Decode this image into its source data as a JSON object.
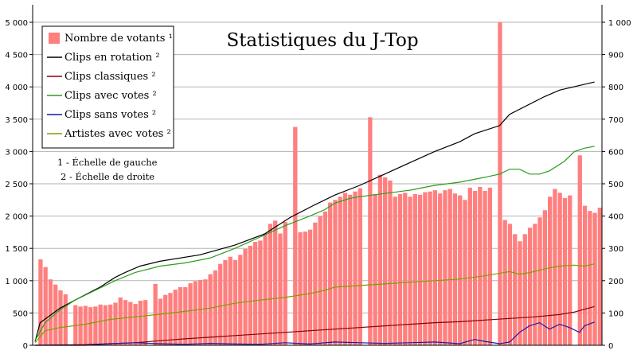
{
  "chart_data": {
    "type": "bar",
    "title": "Statistiques du J-Top",
    "y_left": {
      "min": 0,
      "max": 5000,
      "step": 500,
      "tick_labels": [
        "0",
        "500",
        "1 000",
        "1 500",
        "2 000",
        "2 500",
        "3 000",
        "3 500",
        "4 000",
        "4 500",
        "5 000"
      ]
    },
    "y_right": {
      "min": 0,
      "max": 1000,
      "step": 100,
      "tick_labels": [
        "0",
        "100",
        "200",
        "300",
        "400",
        "500",
        "600",
        "700",
        "800",
        "900",
        "1 000"
      ]
    },
    "grid": true,
    "legend_position": "top-left",
    "notes": [
      "1 - Échelle de gauche",
      "2 - Échelle de droite"
    ],
    "colors": {
      "bars": "#ff7f7f",
      "rotation": "#000000",
      "classiques": "#8b0000",
      "avec_votes": "#2a9d1a",
      "sans_votes": "#1a1aa0",
      "artistes": "#7aa000",
      "grid": "#b3b3b3"
    },
    "series": [
      {
        "key": "votants",
        "name": "Nombre de votants ¹",
        "axis": "left",
        "kind": "bar",
        "color": "#ff7f7f",
        "values": [
          0,
          1330,
          1210,
          1020,
          940,
          850,
          790,
          0,
          620,
          600,
          610,
          590,
          600,
          630,
          620,
          630,
          660,
          740,
          700,
          670,
          640,
          690,
          700,
          0,
          950,
          720,
          780,
          810,
          860,
          900,
          900,
          960,
          990,
          1010,
          1020,
          1100,
          1160,
          1260,
          1320,
          1370,
          1320,
          1400,
          1490,
          1540,
          1600,
          1620,
          1730,
          1880,
          1930,
          1730,
          1910,
          0,
          3380,
          1750,
          1760,
          1790,
          1900,
          2000,
          2070,
          2210,
          2250,
          2300,
          2360,
          2330,
          2380,
          2430,
          0,
          3530,
          2340,
          2640,
          2600,
          2550,
          2300,
          2340,
          2360,
          2300,
          2340,
          2330,
          2370,
          2380,
          2400,
          2350,
          2400,
          2420,
          2350,
          2320,
          2250,
          2440,
          2390,
          2450,
          2390,
          2440,
          0,
          5000,
          1940,
          1880,
          1720,
          1610,
          1720,
          1820,
          1880,
          1980,
          2090,
          2300,
          2420,
          2360,
          2280,
          2320,
          0,
          2940,
          2160,
          2080,
          2050,
          2130
        ]
      },
      {
        "key": "rotation",
        "name": "Clips en rotation ²",
        "axis": "right",
        "kind": "line",
        "color": "#000000",
        "points": [
          [
            0,
            12
          ],
          [
            1,
            70
          ],
          [
            5,
            115
          ],
          [
            8,
            140
          ],
          [
            13,
            180
          ],
          [
            16,
            210
          ],
          [
            18,
            225
          ],
          [
            21,
            245
          ],
          [
            25,
            260
          ],
          [
            33,
            280
          ],
          [
            40,
            310
          ],
          [
            46,
            345
          ],
          [
            51,
            395
          ],
          [
            56,
            435
          ],
          [
            60,
            465
          ],
          [
            65,
            495
          ],
          [
            70,
            530
          ],
          [
            75,
            565
          ],
          [
            80,
            600
          ],
          [
            85,
            630
          ],
          [
            88,
            655
          ],
          [
            93,
            680
          ],
          [
            95,
            715
          ],
          [
            102,
            770
          ],
          [
            105,
            790
          ],
          [
            112,
            815
          ]
        ]
      },
      {
        "key": "classiques",
        "name": "Clips classiques ²",
        "axis": "right",
        "kind": "line",
        "color": "#8b0000",
        "points": [
          [
            0,
            0
          ],
          [
            10,
            2
          ],
          [
            15,
            5
          ],
          [
            20,
            8
          ],
          [
            25,
            14
          ],
          [
            30,
            20
          ],
          [
            35,
            25
          ],
          [
            40,
            30
          ],
          [
            45,
            35
          ],
          [
            50,
            40
          ],
          [
            55,
            45
          ],
          [
            60,
            50
          ],
          [
            65,
            55
          ],
          [
            70,
            60
          ],
          [
            75,
            65
          ],
          [
            80,
            70
          ],
          [
            85,
            73
          ],
          [
            90,
            78
          ],
          [
            95,
            83
          ],
          [
            100,
            88
          ],
          [
            105,
            95
          ],
          [
            108,
            103
          ],
          [
            112,
            120
          ]
        ]
      },
      {
        "key": "avec_votes",
        "name": "Clips avec votes ²",
        "axis": "right",
        "kind": "line",
        "color": "#2a9d1a",
        "points": [
          [
            0,
            15
          ],
          [
            2,
            70
          ],
          [
            5,
            110
          ],
          [
            8,
            140
          ],
          [
            12,
            170
          ],
          [
            16,
            200
          ],
          [
            20,
            225
          ],
          [
            25,
            245
          ],
          [
            30,
            255
          ],
          [
            35,
            270
          ],
          [
            40,
            300
          ],
          [
            45,
            335
          ],
          [
            50,
            370
          ],
          [
            55,
            400
          ],
          [
            58,
            420
          ],
          [
            60,
            440
          ],
          [
            63,
            455
          ],
          [
            65,
            460
          ],
          [
            70,
            470
          ],
          [
            75,
            480
          ],
          [
            80,
            495
          ],
          [
            85,
            505
          ],
          [
            90,
            520
          ],
          [
            93,
            530
          ],
          [
            95,
            545
          ],
          [
            97,
            545
          ],
          [
            99,
            530
          ],
          [
            101,
            530
          ],
          [
            103,
            540
          ],
          [
            106,
            570
          ],
          [
            108,
            600
          ],
          [
            110,
            610
          ],
          [
            112,
            616
          ]
        ]
      },
      {
        "key": "sans_votes",
        "name": "Clips sans votes ²",
        "axis": "right",
        "kind": "line",
        "color": "#1a1aa0",
        "points": [
          [
            0,
            0
          ],
          [
            10,
            0
          ],
          [
            15,
            5
          ],
          [
            20,
            8
          ],
          [
            25,
            5
          ],
          [
            30,
            3
          ],
          [
            35,
            6
          ],
          [
            40,
            4
          ],
          [
            45,
            3
          ],
          [
            50,
            8
          ],
          [
            55,
            4
          ],
          [
            60,
            10
          ],
          [
            65,
            8
          ],
          [
            70,
            6
          ],
          [
            75,
            8
          ],
          [
            80,
            10
          ],
          [
            85,
            5
          ],
          [
            88,
            18
          ],
          [
            90,
            12
          ],
          [
            93,
            5
          ],
          [
            95,
            10
          ],
          [
            97,
            40
          ],
          [
            99,
            60
          ],
          [
            101,
            70
          ],
          [
            103,
            50
          ],
          [
            105,
            65
          ],
          [
            107,
            55
          ],
          [
            109,
            40
          ],
          [
            110,
            60
          ],
          [
            112,
            72
          ]
        ]
      },
      {
        "key": "artistes",
        "name": "Artistes avec votes ²",
        "axis": "right",
        "kind": "line",
        "color": "#7aa000",
        "points": [
          [
            0,
            8
          ],
          [
            2,
            45
          ],
          [
            5,
            55
          ],
          [
            10,
            65
          ],
          [
            15,
            80
          ],
          [
            20,
            88
          ],
          [
            25,
            96
          ],
          [
            30,
            105
          ],
          [
            35,
            115
          ],
          [
            40,
            130
          ],
          [
            45,
            140
          ],
          [
            50,
            148
          ],
          [
            55,
            160
          ],
          [
            58,
            170
          ],
          [
            60,
            180
          ],
          [
            65,
            185
          ],
          [
            70,
            190
          ],
          [
            75,
            195
          ],
          [
            80,
            200
          ],
          [
            85,
            205
          ],
          [
            90,
            215
          ],
          [
            95,
            228
          ],
          [
            97,
            220
          ],
          [
            99,
            225
          ],
          [
            101,
            232
          ],
          [
            103,
            240
          ],
          [
            105,
            245
          ],
          [
            108,
            248
          ],
          [
            110,
            245
          ],
          [
            112,
            252
          ]
        ]
      }
    ]
  }
}
